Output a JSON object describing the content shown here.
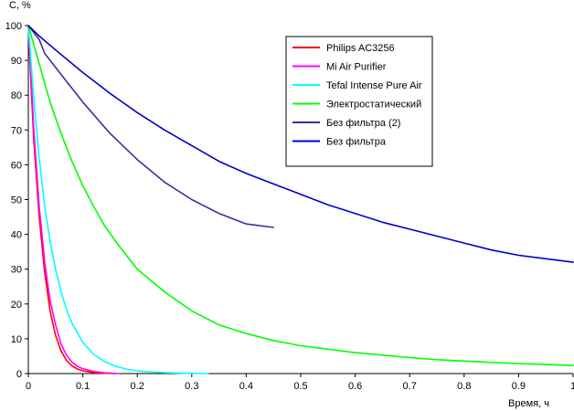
{
  "chart_data": {
    "type": "line",
    "title": "",
    "xlabel": "Время, ч",
    "ylabel": "C, %",
    "xlim": [
      0,
      1
    ],
    "ylim": [
      0,
      100
    ],
    "x_ticks": [
      "0",
      "0.1",
      "0.2",
      "0.3",
      "0.4",
      "0.5",
      "0.6",
      "0.7",
      "0.8",
      "0.9",
      "1"
    ],
    "y_ticks": [
      "0",
      "10",
      "20",
      "30",
      "40",
      "50",
      "60",
      "70",
      "80",
      "90",
      "100"
    ],
    "grid": false,
    "legend_position": "top-right",
    "series": [
      {
        "name": "Philips AC3256",
        "color": "#ff0000",
        "x": [
          0,
          0.005,
          0.01,
          0.02,
          0.03,
          0.04,
          0.05,
          0.06,
          0.07,
          0.08,
          0.09,
          0.1,
          0.12,
          0.14,
          0.16
        ],
        "y": [
          100,
          83,
          67,
          45,
          29,
          18,
          11,
          6.5,
          3.8,
          2.2,
          1.3,
          0.8,
          0.3,
          0.1,
          0
        ]
      },
      {
        "name": "Mi Air Purifier",
        "color": "#ff00ff",
        "x": [
          0,
          0.005,
          0.01,
          0.02,
          0.03,
          0.04,
          0.05,
          0.06,
          0.07,
          0.08,
          0.09,
          0.1,
          0.12,
          0.14,
          0.165
        ],
        "y": [
          100,
          85,
          70,
          48,
          32,
          21,
          14,
          8.5,
          5.3,
          3.3,
          2.1,
          1.4,
          0.6,
          0.2,
          0
        ]
      },
      {
        "name": "Tefal Intense Pure Air",
        "color": "#00ffff",
        "x": [
          0,
          0.01,
          0.02,
          0.03,
          0.04,
          0.05,
          0.06,
          0.07,
          0.08,
          0.1,
          0.12,
          0.14,
          0.16,
          0.18,
          0.2,
          0.22,
          0.25,
          0.28,
          0.3,
          0.33
        ],
        "y": [
          100,
          79,
          62,
          48,
          38,
          30,
          23.5,
          18.5,
          14.5,
          9,
          5.5,
          3.4,
          2.1,
          1.3,
          0.8,
          0.5,
          0.25,
          0.1,
          0.05,
          0
        ]
      },
      {
        "name": "Электростатический",
        "color": "#00ff00",
        "x": [
          0,
          0.02,
          0.04,
          0.06,
          0.08,
          0.1,
          0.12,
          0.14,
          0.16,
          0.18,
          0.2,
          0.25,
          0.3,
          0.35,
          0.4,
          0.45,
          0.5,
          0.55,
          0.6,
          0.65,
          0.7,
          0.75,
          0.8,
          0.85,
          0.9,
          0.95,
          1.0
        ],
        "y": [
          100,
          89,
          78,
          69,
          61,
          54,
          48,
          42.5,
          38,
          34,
          30,
          23.5,
          18,
          14,
          11.5,
          9.5,
          8,
          7,
          6,
          5.3,
          4.6,
          4,
          3.6,
          3.2,
          2.9,
          2.6,
          2.3
        ]
      },
      {
        "name": "Без фильтра (2)",
        "color": "#333399",
        "x": [
          0,
          0.01,
          0.02,
          0.03,
          0.05,
          0.07,
          0.1,
          0.15,
          0.2,
          0.25,
          0.3,
          0.35,
          0.4,
          0.45
        ],
        "y": [
          100,
          98,
          96,
          92,
          88,
          84,
          78,
          69,
          61.5,
          55,
          50,
          46,
          43,
          42
        ]
      },
      {
        "name": "Без фильтра",
        "color": "#0000cc",
        "x": [
          0,
          0.02,
          0.05,
          0.1,
          0.15,
          0.2,
          0.25,
          0.3,
          0.35,
          0.4,
          0.45,
          0.5,
          0.55,
          0.6,
          0.65,
          0.7,
          0.75,
          0.8,
          0.85,
          0.9,
          0.95,
          1.0
        ],
        "y": [
          100,
          97,
          93,
          86.5,
          80.5,
          75,
          70,
          65.5,
          61,
          57.5,
          54.5,
          51.5,
          48.5,
          46,
          43.5,
          41.5,
          39.5,
          37.5,
          35.5,
          34,
          33,
          32
        ]
      }
    ]
  }
}
